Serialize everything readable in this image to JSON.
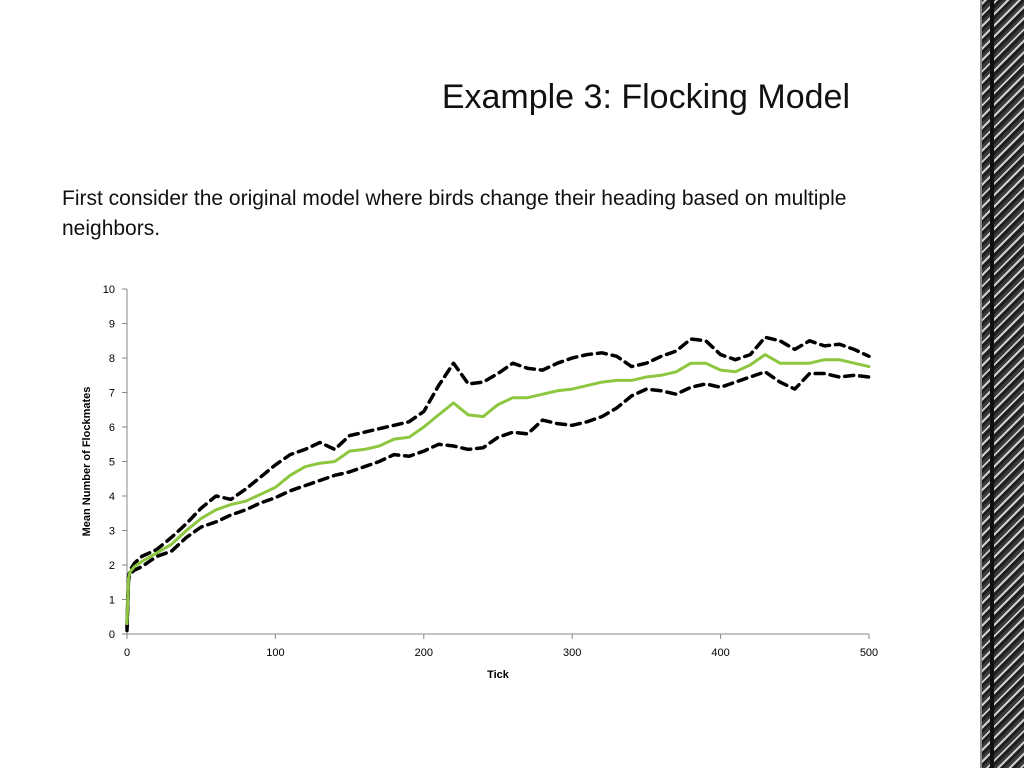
{
  "slide": {
    "title": "Example 3:  Flocking Model",
    "body": "First consider the original model where birds change their heading based on multiple neighbors."
  },
  "chart_data": {
    "type": "line",
    "title": "",
    "xlabel": "Tick",
    "ylabel": "Mean Number of Flockmates",
    "xlim": [
      0,
      500
    ],
    "ylim": [
      0,
      10
    ],
    "xticks": [
      0,
      100,
      200,
      300,
      400,
      500
    ],
    "yticks": [
      0,
      1,
      2,
      3,
      4,
      5,
      6,
      7,
      8,
      9,
      10
    ],
    "grid": false,
    "legend": "none",
    "x": [
      0,
      1,
      2,
      5,
      10,
      20,
      30,
      40,
      50,
      60,
      70,
      80,
      90,
      100,
      110,
      120,
      130,
      140,
      150,
      160,
      170,
      180,
      190,
      200,
      210,
      220,
      230,
      240,
      250,
      260,
      270,
      280,
      290,
      300,
      310,
      320,
      330,
      340,
      350,
      360,
      370,
      380,
      390,
      400,
      410,
      420,
      430,
      440,
      450,
      460,
      470,
      480,
      490,
      500
    ],
    "series": [
      {
        "color": "#8dc63f",
        "style": "solid",
        "values": [
          0.3,
          1.6,
          1.8,
          1.95,
          2.1,
          2.35,
          2.6,
          3.0,
          3.35,
          3.6,
          3.75,
          3.85,
          4.05,
          4.25,
          4.6,
          4.85,
          4.95,
          5.0,
          5.3,
          5.35,
          5.45,
          5.65,
          5.7,
          6.0,
          6.35,
          6.7,
          6.35,
          6.3,
          6.65,
          6.85,
          6.85,
          6.95,
          7.05,
          7.1,
          7.2,
          7.3,
          7.35,
          7.35,
          7.45,
          7.5,
          7.6,
          7.85,
          7.85,
          7.65,
          7.6,
          7.8,
          8.1,
          7.85,
          7.85,
          7.85,
          7.95,
          7.95,
          7.85,
          7.75
        ]
      },
      {
        "color": "#000000",
        "style": "dashed",
        "values": [
          0.2,
          1.65,
          1.85,
          2.05,
          2.25,
          2.45,
          2.8,
          3.2,
          3.65,
          4.0,
          3.9,
          4.2,
          4.55,
          4.9,
          5.2,
          5.35,
          5.55,
          5.35,
          5.75,
          5.85,
          5.95,
          6.05,
          6.15,
          6.45,
          7.2,
          7.85,
          7.25,
          7.3,
          7.55,
          7.85,
          7.7,
          7.65,
          7.85,
          8.0,
          8.1,
          8.15,
          8.05,
          7.75,
          7.85,
          8.05,
          8.2,
          8.55,
          8.5,
          8.1,
          7.95,
          8.1,
          8.6,
          8.5,
          8.25,
          8.5,
          8.35,
          8.4,
          8.25,
          8.05
        ]
      },
      {
        "color": "#000000",
        "style": "dashed",
        "values": [
          0.1,
          1.55,
          1.75,
          1.85,
          1.95,
          2.25,
          2.4,
          2.8,
          3.1,
          3.25,
          3.45,
          3.6,
          3.8,
          3.95,
          4.15,
          4.3,
          4.45,
          4.6,
          4.7,
          4.85,
          5.0,
          5.2,
          5.15,
          5.3,
          5.5,
          5.45,
          5.35,
          5.4,
          5.7,
          5.85,
          5.8,
          6.2,
          6.1,
          6.05,
          6.15,
          6.3,
          6.55,
          6.9,
          7.1,
          7.05,
          6.95,
          7.15,
          7.25,
          7.15,
          7.3,
          7.45,
          7.6,
          7.3,
          7.1,
          7.55,
          7.55,
          7.45,
          7.5,
          7.45
        ]
      }
    ]
  }
}
